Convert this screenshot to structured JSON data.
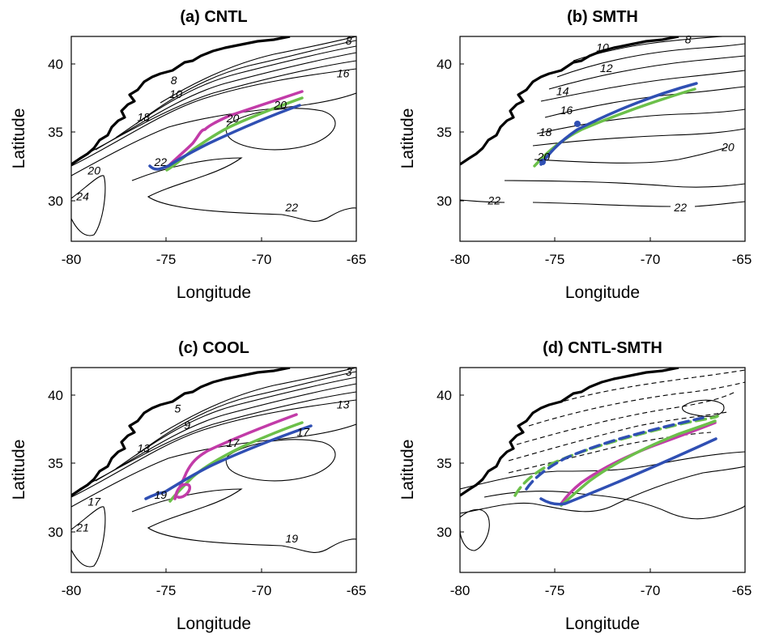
{
  "figure": {
    "colors": {
      "magenta": "#c23ba8",
      "green": "#6cc04a",
      "blue": "#2f4fb3"
    },
    "panels": [
      {
        "id": "a",
        "title": "(a) CNTL",
        "xlabel": "Longitude",
        "ylabel": "Latitude",
        "xticks": [
          "-80",
          "-75",
          "-70",
          "-65"
        ],
        "yticks": [
          "40",
          "35",
          "30"
        ],
        "xlim": [
          -80,
          -65
        ],
        "ylim": [
          27,
          42
        ],
        "contour_labels": [
          {
            "text": "8",
            "lon": -65.4,
            "lat": 41.7
          },
          {
            "text": "16",
            "lon": -65.7,
            "lat": 39.3
          },
          {
            "text": "8",
            "lon": -74.6,
            "lat": 38.8
          },
          {
            "text": "10",
            "lon": -74.5,
            "lat": 37.8
          },
          {
            "text": "18",
            "lon": -76.2,
            "lat": 36.1
          },
          {
            "text": "20",
            "lon": -71.5,
            "lat": 36.0
          },
          {
            "text": "20",
            "lon": -69.0,
            "lat": 37.0
          },
          {
            "text": "22",
            "lon": -75.3,
            "lat": 32.8
          },
          {
            "text": "20",
            "lon": -78.8,
            "lat": 32.2
          },
          {
            "text": "24",
            "lon": -79.4,
            "lat": 30.3
          },
          {
            "text": "22",
            "lon": -68.4,
            "lat": 29.5
          }
        ]
      },
      {
        "id": "b",
        "title": "(b) SMTH",
        "xlabel": "Longitude",
        "ylabel": "Latitude",
        "xticks": [
          "-80",
          "-75",
          "-70",
          "-65"
        ],
        "yticks": [
          "40",
          "35",
          "30"
        ],
        "xlim": [
          -80,
          -65
        ],
        "ylim": [
          27,
          42
        ],
        "contour_labels": [
          {
            "text": "8",
            "lon": -68.0,
            "lat": 41.8
          },
          {
            "text": "10",
            "lon": -72.5,
            "lat": 41.2
          },
          {
            "text": "12",
            "lon": -72.3,
            "lat": 39.7
          },
          {
            "text": "14",
            "lon": -74.6,
            "lat": 38.0
          },
          {
            "text": "16",
            "lon": -74.4,
            "lat": 36.6
          },
          {
            "text": "18",
            "lon": -75.5,
            "lat": 35.0
          },
          {
            "text": "20",
            "lon": -75.6,
            "lat": 33.2
          },
          {
            "text": "20",
            "lon": -65.9,
            "lat": 33.9
          },
          {
            "text": "22",
            "lon": -78.2,
            "lat": 30.0
          },
          {
            "text": "22",
            "lon": -68.4,
            "lat": 29.5
          }
        ]
      },
      {
        "id": "c",
        "title": "(c) COOL",
        "xlabel": "Longitude",
        "ylabel": "Latitude",
        "xticks": [
          "-80",
          "-75",
          "-70",
          "-65"
        ],
        "yticks": [
          "40",
          "35",
          "30"
        ],
        "xlim": [
          -80,
          -65
        ],
        "ylim": [
          27,
          42
        ],
        "contour_labels": [
          {
            "text": "3",
            "lon": -65.4,
            "lat": 41.7
          },
          {
            "text": "13",
            "lon": -65.7,
            "lat": 39.3
          },
          {
            "text": "5",
            "lon": -74.4,
            "lat": 39.0
          },
          {
            "text": "9",
            "lon": -73.9,
            "lat": 37.8
          },
          {
            "text": "13",
            "lon": -76.2,
            "lat": 36.1
          },
          {
            "text": "17",
            "lon": -71.5,
            "lat": 36.5
          },
          {
            "text": "17",
            "lon": -67.8,
            "lat": 37.3
          },
          {
            "text": "19",
            "lon": -75.3,
            "lat": 32.7
          },
          {
            "text": "17",
            "lon": -78.8,
            "lat": 32.2
          },
          {
            "text": "21",
            "lon": -79.4,
            "lat": 30.3
          },
          {
            "text": "19",
            "lon": -68.4,
            "lat": 29.5
          }
        ]
      },
      {
        "id": "d",
        "title": "(d) CNTL-SMTH",
        "xlabel": "Longitude",
        "ylabel": "Latitude",
        "xticks": [
          "-80",
          "-75",
          "-70",
          "-65"
        ],
        "yticks": [
          "40",
          "35",
          "30"
        ],
        "xlim": [
          -80,
          -65
        ],
        "ylim": [
          27,
          42
        ],
        "contour_labels": []
      }
    ]
  }
}
